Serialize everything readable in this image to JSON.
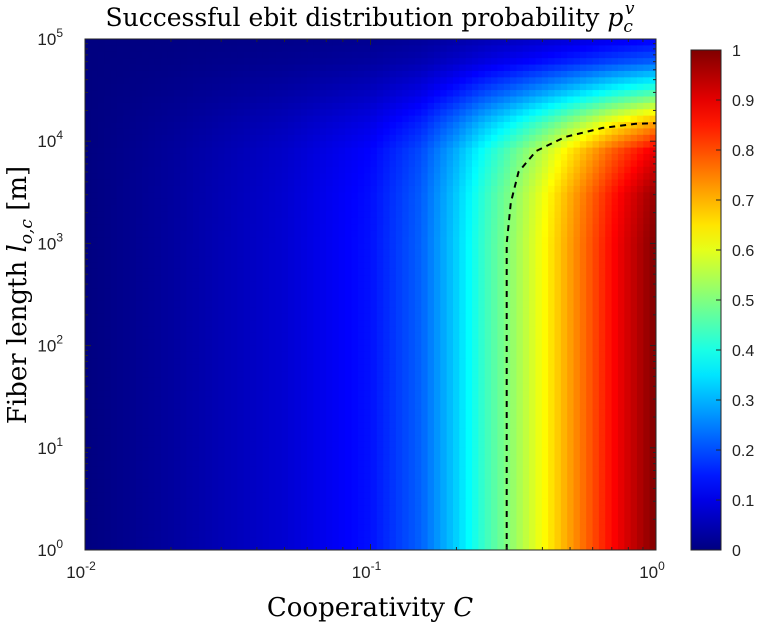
{
  "chart_data": {
    "type": "heatmap",
    "title": {
      "text": "Successful ebit distribution probability ",
      "symbol": "p",
      "subscript": "c",
      "superscript": "v"
    },
    "xlabel": {
      "text": "Cooperativity ",
      "symbol": "C"
    },
    "ylabel": {
      "text": "Fiber length ",
      "symbol": "l",
      "subscript": "o,c",
      "unit": " [m]"
    },
    "x_scale": "log",
    "y_scale": "log",
    "xlim": [
      0.01,
      1
    ],
    "ylim": [
      1,
      100000
    ],
    "x_ticks": [
      {
        "value": 0.01,
        "base": "10",
        "exp": "-2"
      },
      {
        "value": 0.1,
        "base": "10",
        "exp": "-1"
      },
      {
        "value": 1,
        "base": "10",
        "exp": "0"
      }
    ],
    "y_ticks": [
      {
        "value": 1,
        "base": "10",
        "exp": "0"
      },
      {
        "value": 10,
        "base": "10",
        "exp": "1"
      },
      {
        "value": 100,
        "base": "10",
        "exp": "2"
      },
      {
        "value": 1000,
        "base": "10",
        "exp": "3"
      },
      {
        "value": 10000,
        "base": "10",
        "exp": "4"
      },
      {
        "value": 100000,
        "base": "10",
        "exp": "5"
      }
    ],
    "colormap": "jet",
    "colorbar": {
      "range": [
        0,
        1
      ],
      "ticks": [
        "0",
        "0.1",
        "0.2",
        "0.3",
        "0.4",
        "0.5",
        "0.6",
        "0.7",
        "0.8",
        "0.9",
        "1"
      ]
    },
    "value_profile_vs_C": {
      "C": [
        0.01,
        0.02,
        0.05,
        0.1,
        0.15,
        0.2,
        0.25,
        0.3,
        0.4,
        0.5,
        0.6,
        0.7,
        0.8,
        1.0
      ],
      "p": [
        0.0,
        0.03,
        0.08,
        0.14,
        0.22,
        0.33,
        0.43,
        0.5,
        0.62,
        0.72,
        0.8,
        0.87,
        0.92,
        1.0
      ]
    },
    "length_attenuation": {
      "l": [
        1,
        1000,
        3000,
        8000,
        15000,
        30000,
        60000,
        100000
      ],
      "factor": [
        1.0,
        1.0,
        0.98,
        0.9,
        0.72,
        0.45,
        0.22,
        0.12
      ]
    },
    "contour": {
      "level": 0.5,
      "style": "dashed",
      "color": "#000000",
      "points": [
        {
          "C": 0.3,
          "l": 1
        },
        {
          "C": 0.3,
          "l": 100
        },
        {
          "C": 0.3,
          "l": 1000
        },
        {
          "C": 0.31,
          "l": 2500
        },
        {
          "C": 0.33,
          "l": 5000
        },
        {
          "C": 0.38,
          "l": 8000
        },
        {
          "C": 0.48,
          "l": 11000
        },
        {
          "C": 0.65,
          "l": 13500
        },
        {
          "C": 0.85,
          "l": 14800
        },
        {
          "C": 1.0,
          "l": 15000
        }
      ]
    }
  }
}
